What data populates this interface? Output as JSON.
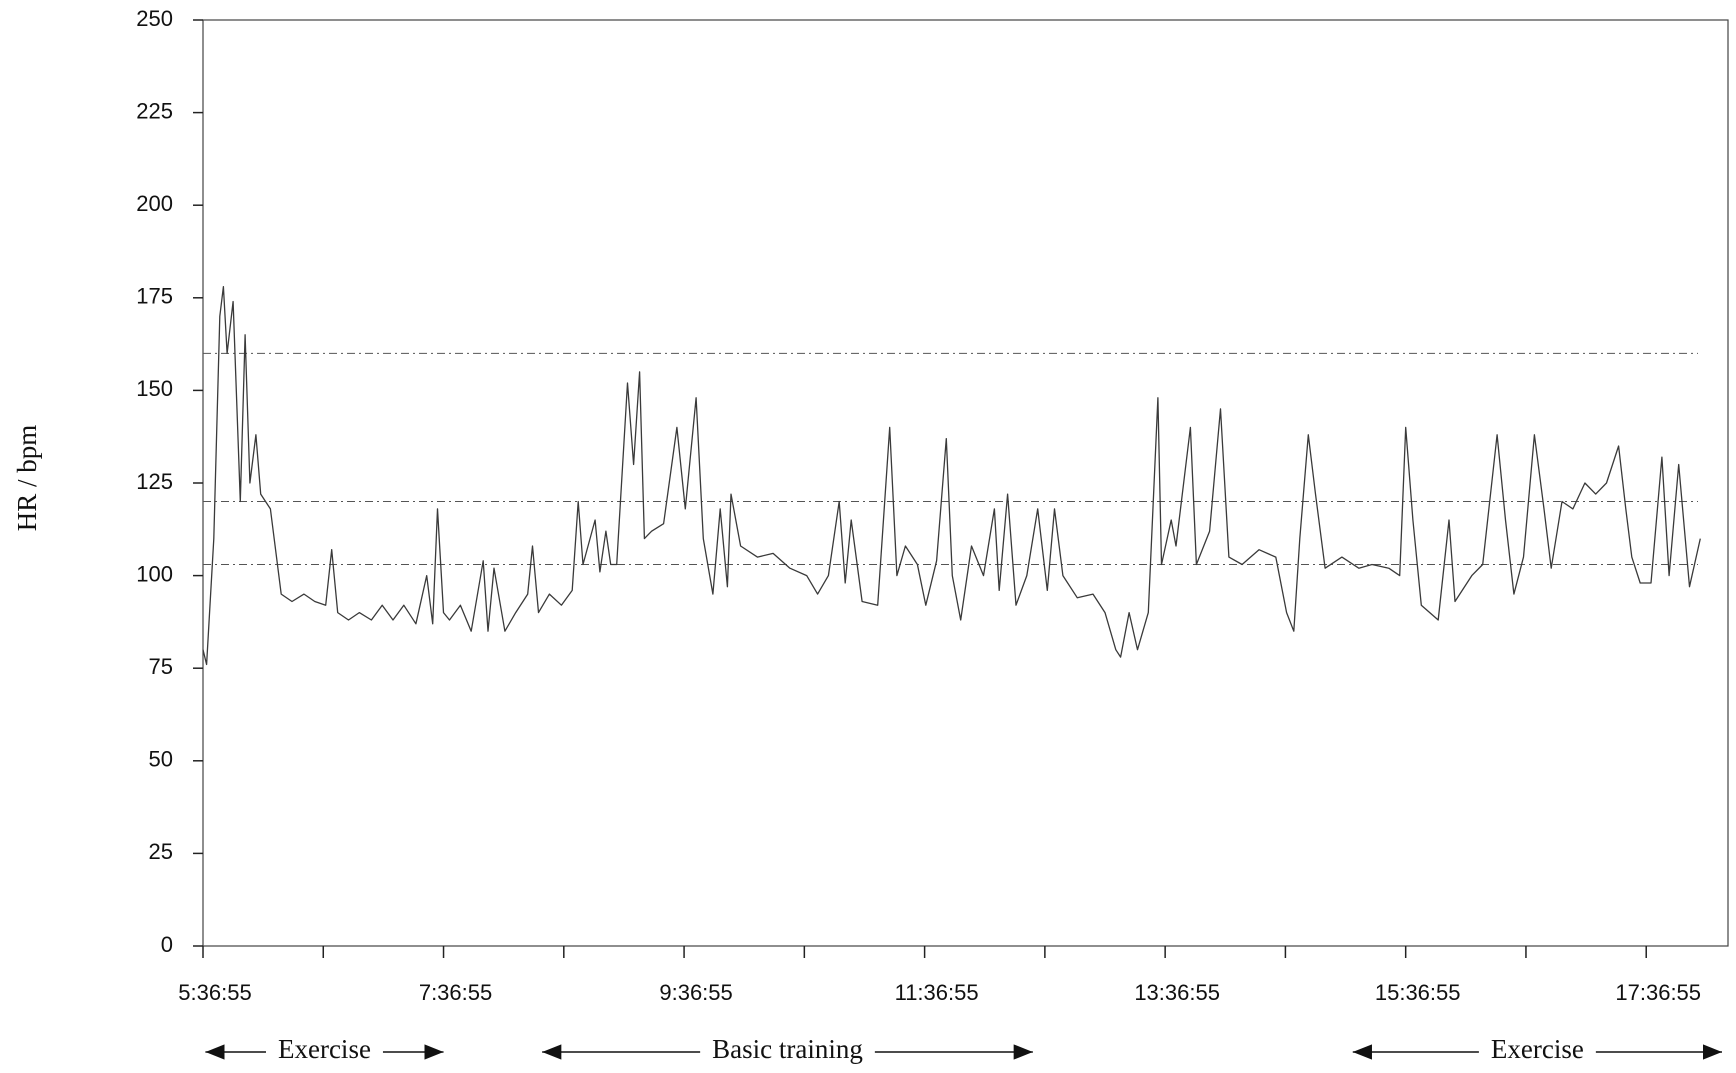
{
  "chart_data": {
    "type": "line",
    "y_label": "HR / bpm",
    "color": "#3a3a3a",
    "xlim": [
      0,
      12.68
    ],
    "ylim": [
      0,
      250
    ],
    "yticks": [
      0,
      25,
      50,
      75,
      100,
      125,
      150,
      175,
      200,
      225,
      250
    ],
    "xticks": [
      {
        "value": 0,
        "label": "5:36:55"
      },
      {
        "value": 2,
        "label": "7:36:55"
      },
      {
        "value": 4,
        "label": "9:36:55"
      },
      {
        "value": 6,
        "label": "11:36:55"
      },
      {
        "value": 8,
        "label": "13:36:55"
      },
      {
        "value": 10,
        "label": "15:36:55"
      },
      {
        "value": 12,
        "label": "17:36:55"
      }
    ],
    "minor_xticks": [
      1,
      3,
      5,
      7,
      9,
      11
    ],
    "reference_lines": [
      160,
      120,
      103
    ],
    "annotations": [
      {
        "text": "Exercise",
        "x_start": 0.02,
        "x_end": 2.0
      },
      {
        "text": "Basic training",
        "x_start": 2.82,
        "x_end": 6.9
      },
      {
        "text": "Exercise",
        "x_start": 9.56,
        "x_end": 12.63
      }
    ],
    "x": [
      0,
      0.03,
      0.09,
      0.14,
      0.17,
      0.2,
      0.25,
      0.31,
      0.35,
      0.39,
      0.44,
      0.48,
      0.56,
      0.65,
      0.74,
      0.84,
      0.93,
      1.02,
      1.07,
      1.12,
      1.21,
      1.3,
      1.4,
      1.49,
      1.58,
      1.67,
      1.77,
      1.86,
      1.91,
      1.95,
      2.0,
      2.05,
      2.14,
      2.23,
      2.33,
      2.37,
      2.42,
      2.51,
      2.6,
      2.7,
      2.74,
      2.79,
      2.88,
      2.98,
      3.07,
      3.12,
      3.16,
      3.26,
      3.3,
      3.35,
      3.39,
      3.44,
      3.53,
      3.58,
      3.63,
      3.67,
      3.73,
      3.83,
      3.94,
      4.01,
      4.1,
      4.16,
      4.24,
      4.3,
      4.36,
      4.39,
      4.47,
      4.61,
      4.74,
      4.88,
      5.02,
      5.11,
      5.2,
      5.29,
      5.34,
      5.39,
      5.48,
      5.61,
      5.71,
      5.77,
      5.84,
      5.94,
      6.01,
      6.1,
      6.18,
      6.23,
      6.3,
      6.39,
      6.49,
      6.58,
      6.62,
      6.69,
      6.76,
      6.85,
      6.94,
      7.02,
      7.08,
      7.15,
      7.27,
      7.4,
      7.5,
      7.59,
      7.63,
      7.7,
      7.77,
      7.86,
      7.94,
      7.97,
      8.05,
      8.09,
      8.21,
      8.26,
      8.37,
      8.46,
      8.53,
      8.64,
      8.78,
      8.92,
      9.01,
      9.07,
      9.12,
      9.19,
      9.25,
      9.33,
      9.47,
      9.61,
      9.72,
      9.86,
      9.95,
      10.0,
      10.06,
      10.13,
      10.27,
      10.36,
      10.41,
      10.55,
      10.64,
      10.76,
      10.83,
      10.9,
      10.98,
      11.07,
      11.15,
      11.21,
      11.3,
      11.39,
      11.49,
      11.58,
      11.67,
      11.77,
      11.83,
      11.88,
      11.95,
      12.04,
      12.13,
      12.19,
      12.27,
      12.36,
      12.45
    ],
    "values": [
      80,
      76,
      110,
      170,
      178,
      160,
      174,
      120,
      165,
      125,
      138,
      122,
      118,
      95,
      93,
      95,
      93,
      92,
      107,
      90,
      88,
      90,
      88,
      92,
      88,
      92,
      87,
      100,
      87,
      118,
      90,
      88,
      92,
      85,
      104,
      85,
      102,
      85,
      90,
      95,
      108,
      90,
      95,
      92,
      96,
      120,
      103,
      115,
      101,
      112,
      103,
      103,
      152,
      130,
      155,
      110,
      112,
      114,
      140,
      118,
      148,
      110,
      95,
      118,
      97,
      122,
      108,
      105,
      106,
      102,
      100,
      95,
      100,
      120,
      98,
      115,
      93,
      92,
      140,
      100,
      108,
      103,
      92,
      104,
      137,
      100,
      88,
      108,
      100,
      118,
      96,
      122,
      92,
      100,
      118,
      96,
      118,
      100,
      94,
      95,
      90,
      80,
      78,
      90,
      80,
      90,
      148,
      103,
      115,
      108,
      140,
      103,
      112,
      145,
      105,
      103,
      107,
      105,
      90,
      85,
      110,
      138,
      122,
      102,
      105,
      102,
      103,
      102,
      100,
      140,
      115,
      92,
      88,
      115,
      93,
      100,
      103,
      138,
      115,
      95,
      105,
      138,
      118,
      102,
      120,
      118,
      125,
      122,
      125,
      135,
      118,
      105,
      98,
      98,
      132,
      100,
      130,
      97,
      110
    ]
  }
}
